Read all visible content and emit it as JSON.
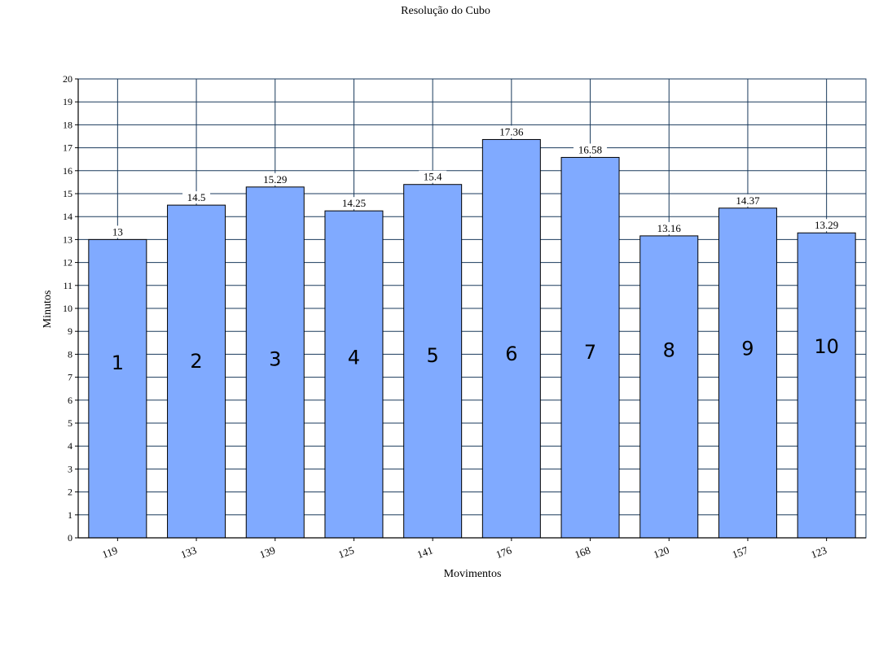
{
  "chart_data": {
    "type": "bar",
    "title": "Resolução do Cubo",
    "xlabel": "Movimentos",
    "ylabel": "Minutos",
    "categories": [
      "119",
      "133",
      "139",
      "125",
      "141",
      "176",
      "168",
      "120",
      "157",
      "123"
    ],
    "values": [
      13,
      14.5,
      15.29,
      14.25,
      15.4,
      17.36,
      16.58,
      13.16,
      14.37,
      13.29
    ],
    "value_labels": [
      "13",
      "14.5",
      "15.29",
      "14.25",
      "15.4",
      "17.36",
      "16.58",
      "13.16",
      "14.37",
      "13.29"
    ],
    "bar_numbers": [
      "1",
      "2",
      "3",
      "4",
      "5",
      "6",
      "7",
      "8",
      "9",
      "10"
    ],
    "ylim": [
      0,
      20
    ],
    "yticks": [
      "0",
      "1",
      "2",
      "3",
      "4",
      "5",
      "6",
      "7",
      "8",
      "9",
      "10",
      "11",
      "12",
      "13",
      "14",
      "15",
      "16",
      "17",
      "18",
      "19",
      "20"
    ],
    "grid": true,
    "bar_color": "#80aaff",
    "grid_color": "#1a3a5c"
  }
}
